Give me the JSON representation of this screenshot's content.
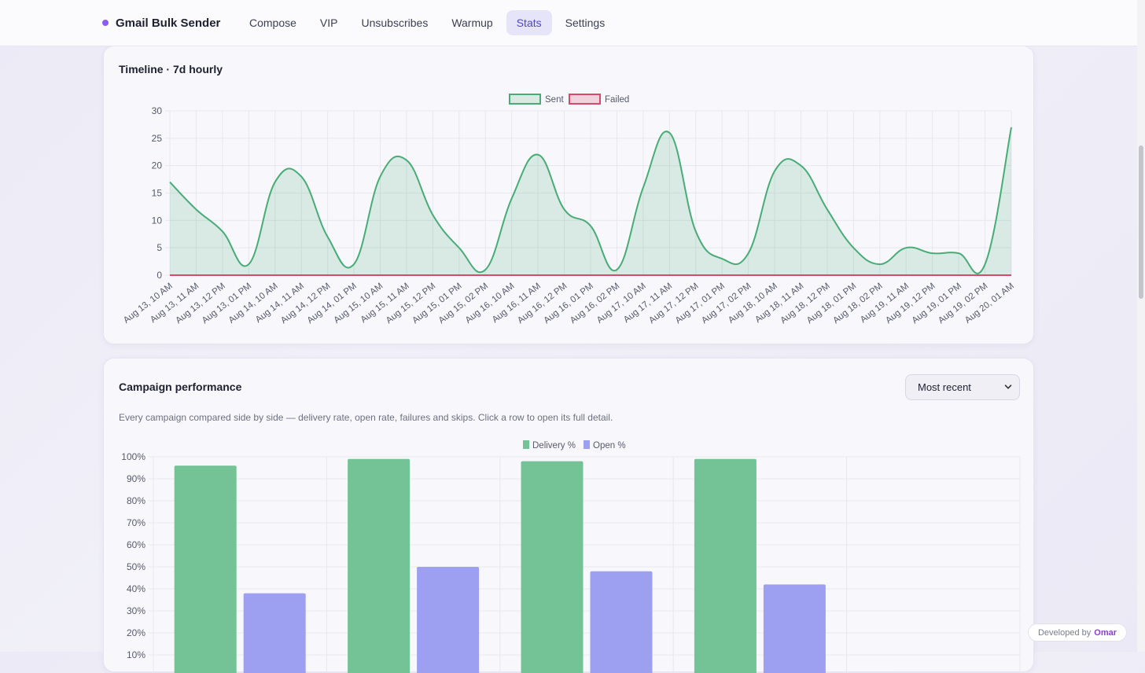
{
  "app": {
    "title": "Gmail Bulk Sender"
  },
  "nav": {
    "items": [
      {
        "label": "Compose"
      },
      {
        "label": "VIP"
      },
      {
        "label": "Unsubscribes"
      },
      {
        "label": "Warmup"
      },
      {
        "label": "Stats",
        "active": true
      },
      {
        "label": "Settings"
      }
    ]
  },
  "timeline": {
    "title": "Timeline · 7d hourly",
    "chart_data": {
      "type": "line",
      "categories": [
        "Aug 13, 10 AM",
        "Aug 13, 11 AM",
        "Aug 13, 12 PM",
        "Aug 13, 01 PM",
        "Aug 14, 10 AM",
        "Aug 14, 11 AM",
        "Aug 14, 12 PM",
        "Aug 14, 01 PM",
        "Aug 15, 10 AM",
        "Aug 15, 11 AM",
        "Aug 15, 12 PM",
        "Aug 15, 01 PM",
        "Aug 15, 02 PM",
        "Aug 16, 10 AM",
        "Aug 16, 11 AM",
        "Aug 16, 12 PM",
        "Aug 16, 01 PM",
        "Aug 16, 02 PM",
        "Aug 17, 10 AM",
        "Aug 17, 11 AM",
        "Aug 17, 12 PM",
        "Aug 17, 01 PM",
        "Aug 17, 02 PM",
        "Aug 18, 10 AM",
        "Aug 18, 11 AM",
        "Aug 18, 12 PM",
        "Aug 18, 01 PM",
        "Aug 18, 02 PM",
        "Aug 19, 11 AM",
        "Aug 19, 12 PM",
        "Aug 19, 01 PM",
        "Aug 19, 02 PM",
        "Aug 20, 01 AM"
      ],
      "series": [
        {
          "name": "Sent",
          "color": "#48ac77",
          "values": [
            17,
            12,
            8,
            2,
            17,
            18,
            7,
            2,
            18,
            21,
            11,
            5,
            1,
            14,
            22,
            12,
            9,
            1,
            16,
            26,
            8,
            3,
            4,
            19,
            20,
            12,
            5,
            2,
            5,
            4,
            4,
            2,
            27
          ]
        },
        {
          "name": "Failed",
          "color": "#d94a6a",
          "values": [
            0,
            0,
            0,
            0,
            0,
            0,
            0,
            0,
            0,
            0,
            0,
            0,
            0,
            0,
            0,
            0,
            0,
            0,
            0,
            0,
            0,
            0,
            0,
            0,
            0,
            0,
            0,
            0,
            0,
            0,
            0,
            0,
            0
          ]
        }
      ],
      "ylim": [
        0,
        30
      ],
      "yticks": [
        0,
        5,
        10,
        15,
        20,
        25,
        30
      ],
      "grid": true,
      "legend": "top-center"
    }
  },
  "campaigns": {
    "title": "Campaign performance",
    "description": "Every campaign compared side by side — delivery rate, open rate, failures and skips. Click a row to open its full detail.",
    "sort": {
      "selected": "Most recent"
    },
    "chart_data": {
      "type": "bar",
      "categories": [
        "",
        "",
        "",
        "",
        ""
      ],
      "series": [
        {
          "name": "Delivery %",
          "color": "#74c397",
          "values": [
            96,
            99,
            98,
            99,
            null
          ]
        },
        {
          "name": "Open %",
          "color": "#9da0f0",
          "values": [
            38,
            50,
            48,
            42,
            null
          ]
        }
      ],
      "ylim": [
        0,
        100
      ],
      "yticks": [
        "10%",
        "20%",
        "30%",
        "40%",
        "50%",
        "60%",
        "70%",
        "80%",
        "90%",
        "100%"
      ],
      "grid": true,
      "legend": "top-center"
    }
  },
  "footer": {
    "developed_by": "Developed by",
    "author": "Omar"
  }
}
